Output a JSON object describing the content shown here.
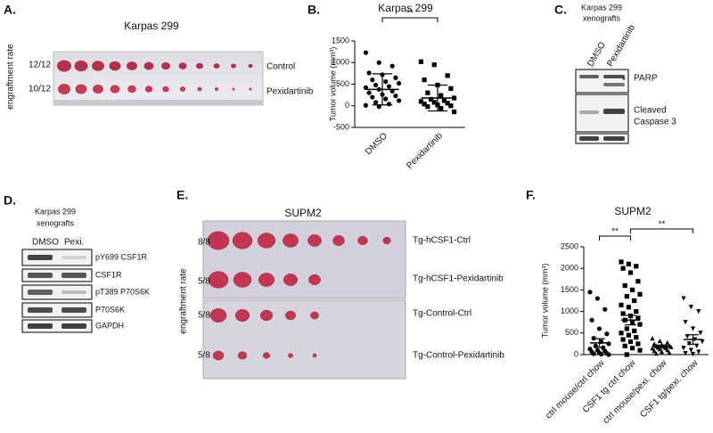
{
  "panels": {
    "A": {
      "label": "A.",
      "title": "Karpas 299",
      "ylabel": "engraftment rate",
      "rows": [
        {
          "rate": "12/12",
          "name": "Control"
        },
        {
          "rate": "10/12",
          "name": "Pexidartinib"
        }
      ]
    },
    "C": {
      "label": "C.",
      "title": [
        "Karpas 299",
        "xenografts"
      ],
      "lanes": [
        "DMSO",
        "Pexidartinib"
      ],
      "bands": [
        "PARP",
        "*",
        "Cleaved",
        "Caspase 3"
      ]
    },
    "D": {
      "label": "D.",
      "title": [
        "Karpas 299",
        "xenografts"
      ],
      "lanes": [
        "DMSO",
        "Pexi."
      ],
      "bands": [
        "pY699 CSF1R",
        "CSF1R",
        "pT389 P70S6K",
        "P70S6K",
        "GAPDH"
      ]
    },
    "E": {
      "label": "E.",
      "title": "SUPM2",
      "ylabel": "engraftment rate",
      "rows": [
        {
          "rate": "8/8",
          "name": "Tg-hCSF1-Ctrl"
        },
        {
          "rate": "5/8",
          "name": "Tg-hCSF1-Pexidartinib"
        },
        {
          "rate": "5/8",
          "name": "Tg-Control-Ctrl"
        },
        {
          "rate": "5/8",
          "name": "Tg-Control-Pexidartinib"
        }
      ]
    }
  },
  "chart_data": [
    {
      "type": "dot",
      "label": "B.",
      "title": "Karpas 299",
      "ylabel": "Tumor volume (mm³)",
      "categories": [
        "DMSO",
        "Pexidartinib"
      ],
      "groups": [
        {
          "marker": "circle",
          "color": "#000000",
          "mean": 380,
          "error": 360,
          "values": [
            1230,
            1000,
            920,
            760,
            720,
            650,
            600,
            560,
            520,
            480,
            450,
            420,
            380,
            340,
            300,
            260,
            230,
            200,
            160,
            120,
            80,
            40,
            10,
            -20
          ]
        },
        {
          "marker": "square",
          "color": "#000000",
          "mean": 180,
          "error": 300,
          "values": [
            1020,
            950,
            700,
            600,
            480,
            400,
            300,
            240,
            180,
            150,
            120,
            100,
            80,
            60,
            40,
            20,
            0,
            -20,
            -60,
            -140
          ]
        }
      ],
      "ylim": [
        -500,
        1500
      ],
      "yticks": [
        -500,
        0,
        500,
        1000,
        1500
      ],
      "annotations": [
        "**"
      ]
    },
    {
      "type": "dot",
      "label": "F.",
      "title": "SUPM2",
      "ylabel": "Tumor volume (mm³)",
      "categories": [
        "ctrl mouse/ctrl chow",
        "CSF1 tg ctrl chow",
        "ctrl mouse/pexi. chow",
        "CSF1 tg/pexi. chow"
      ],
      "groups": [
        {
          "marker": "circle",
          "color": "#000000",
          "mean": 270,
          "error": 100,
          "values": [
            1450,
            1300,
            1050,
            800,
            600,
            480,
            380,
            300,
            250,
            200,
            160,
            130,
            100,
            80,
            60,
            40,
            30,
            20,
            10,
            0
          ]
        },
        {
          "marker": "square",
          "color": "#000000",
          "mean": 800,
          "error": 110,
          "values": [
            2150,
            2100,
            2050,
            2000,
            1900,
            1700,
            1600,
            1500,
            1400,
            1350,
            1250,
            1150,
            1100,
            1000,
            950,
            900,
            850,
            800,
            750,
            700,
            600,
            550,
            500,
            450,
            400,
            350,
            300,
            250,
            200,
            150,
            100,
            0
          ]
        },
        {
          "marker": "triangle-up",
          "color": "#000000",
          "mean": 190,
          "error": 30,
          "values": [
            380,
            320,
            280,
            250,
            230,
            210,
            200,
            190,
            180,
            170,
            160,
            150,
            130,
            110,
            90,
            70,
            50,
            30
          ]
        },
        {
          "marker": "triangle-down",
          "color": "#000000",
          "mean": 350,
          "error": 110,
          "values": [
            1300,
            1100,
            1000,
            750,
            600,
            500,
            420,
            350,
            300,
            250,
            200,
            150,
            100,
            60,
            30,
            10
          ]
        }
      ],
      "ylim": [
        0,
        2500
      ],
      "yticks": [
        0,
        500,
        1000,
        1500,
        2000,
        2500
      ],
      "annotations": [
        "**",
        "**"
      ]
    }
  ]
}
